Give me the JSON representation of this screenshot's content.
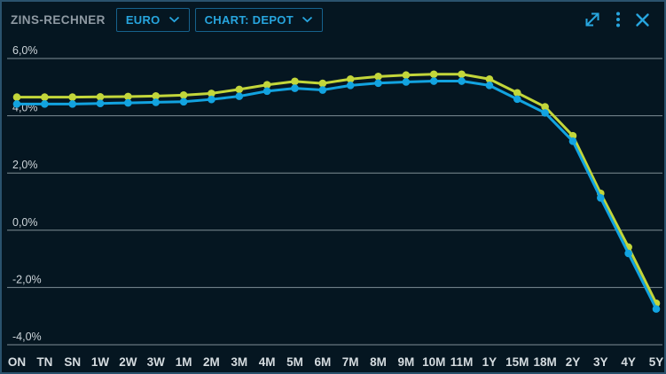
{
  "header": {
    "title": "ZINS-RECHNER",
    "currency_dropdown": {
      "label": "EURO"
    },
    "chart_dropdown": {
      "label": "CHART: DEPOT"
    },
    "window_icons": [
      "expand-icon",
      "kebab-menu-icon",
      "close-icon"
    ]
  },
  "colors": {
    "background": "#051621",
    "widget_border": "#2a526d",
    "gridline": "#7e8d96",
    "y_tick_text": "#cdd5da",
    "x_tick_text": "#d5dce0",
    "title_text": "#8f9aa3",
    "accent_cyan": "#27a5de",
    "dropdown_border": "#16618c",
    "series_yellow": "#c3d63a",
    "series_blue": "#12a3e0"
  },
  "chart_data": {
    "type": "line",
    "title": "",
    "xlabel": "",
    "ylabel": "",
    "categories": [
      "ON",
      "TN",
      "SN",
      "1W",
      "2W",
      "3W",
      "1M",
      "2M",
      "3M",
      "4M",
      "5M",
      "6M",
      "7M",
      "8M",
      "9M",
      "10M",
      "11M",
      "1Y",
      "15M",
      "18M",
      "2Y",
      "3Y",
      "4Y",
      "5Y"
    ],
    "series": [
      {
        "name": "yellow",
        "color": "#c3d63a",
        "values": [
          4.65,
          4.65,
          4.65,
          4.66,
          4.67,
          4.69,
          4.72,
          4.78,
          4.92,
          5.08,
          5.2,
          5.13,
          5.28,
          5.37,
          5.42,
          5.45,
          5.45,
          5.28,
          4.8,
          4.31,
          3.3,
          1.29,
          -0.59,
          -2.55
        ]
      },
      {
        "name": "blue",
        "color": "#12a3e0",
        "values": [
          4.41,
          4.41,
          4.41,
          4.43,
          4.45,
          4.47,
          4.49,
          4.57,
          4.68,
          4.86,
          4.96,
          4.9,
          5.06,
          5.14,
          5.18,
          5.21,
          5.21,
          5.06,
          4.58,
          4.1,
          3.11,
          1.13,
          -0.81,
          -2.75
        ]
      }
    ],
    "y_gridlines": [
      6,
      4,
      2,
      0,
      -2,
      -4
    ],
    "y_tick_labels": [
      "6,0%",
      "4,0%",
      "2,0%",
      "0,0%",
      "-2,0%",
      "-4,0%"
    ],
    "ylim": [
      -4.7,
      6.7
    ],
    "grid": "horizontal-only",
    "legend": "none",
    "markers": true
  }
}
